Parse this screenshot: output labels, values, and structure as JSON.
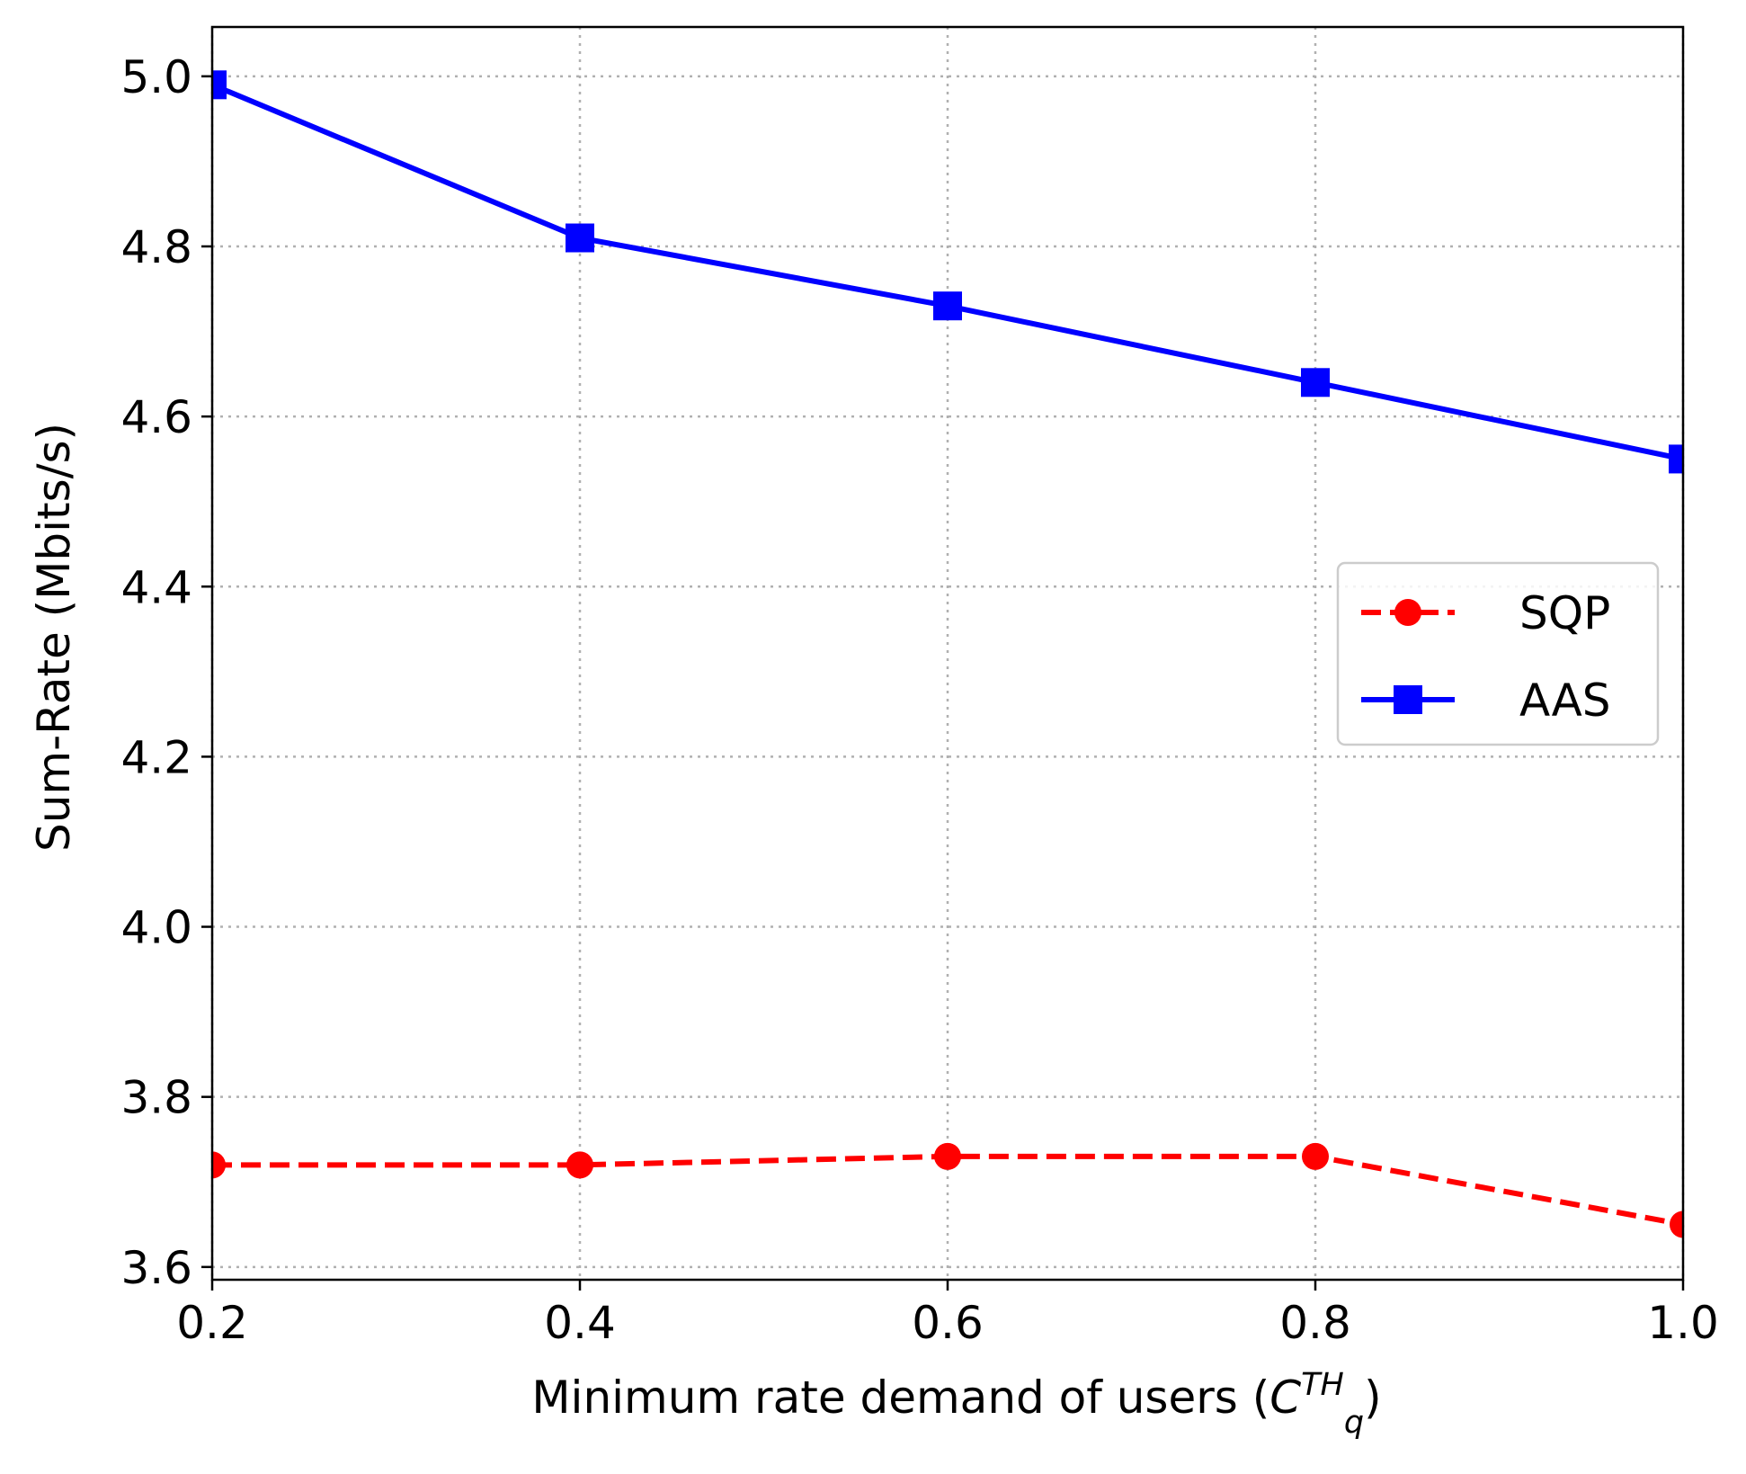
{
  "chart_data": {
    "type": "line",
    "title": "",
    "xlabel_main": "Minimum rate demand of users (",
    "xlabel_symbol": "C",
    "xlabel_superscript": "TH",
    "xlabel_subscript": "q",
    "xlabel_close": ")",
    "ylabel": "Sum-Rate (Mbits/s)",
    "x": [
      0.2,
      0.4,
      0.6,
      0.8,
      1.0
    ],
    "xlim": [
      0.2,
      1.0
    ],
    "ylim": [
      3.585,
      5.058
    ],
    "xticks": [
      0.2,
      0.4,
      0.6,
      0.8,
      1.0
    ],
    "xtick_labels": [
      "0.2",
      "0.4",
      "0.6",
      "0.8",
      "1.0"
    ],
    "yticks": [
      3.6,
      3.8,
      4.0,
      4.2,
      4.4,
      4.6,
      4.8,
      5.0
    ],
    "ytick_labels": [
      "3.6",
      "3.8",
      "4.0",
      "4.2",
      "4.4",
      "4.6",
      "4.8",
      "5.0"
    ],
    "grid": true,
    "legend_position": "center-right",
    "series": [
      {
        "name": "SQP",
        "values": [
          3.72,
          3.72,
          3.73,
          3.73,
          3.65
        ],
        "color": "#ff0000",
        "linestyle": "dashed",
        "marker": "circle"
      },
      {
        "name": "AAS",
        "values": [
          4.99,
          4.81,
          4.73,
          4.64,
          4.55
        ],
        "color": "#0000ff",
        "linestyle": "solid",
        "marker": "square"
      }
    ]
  }
}
